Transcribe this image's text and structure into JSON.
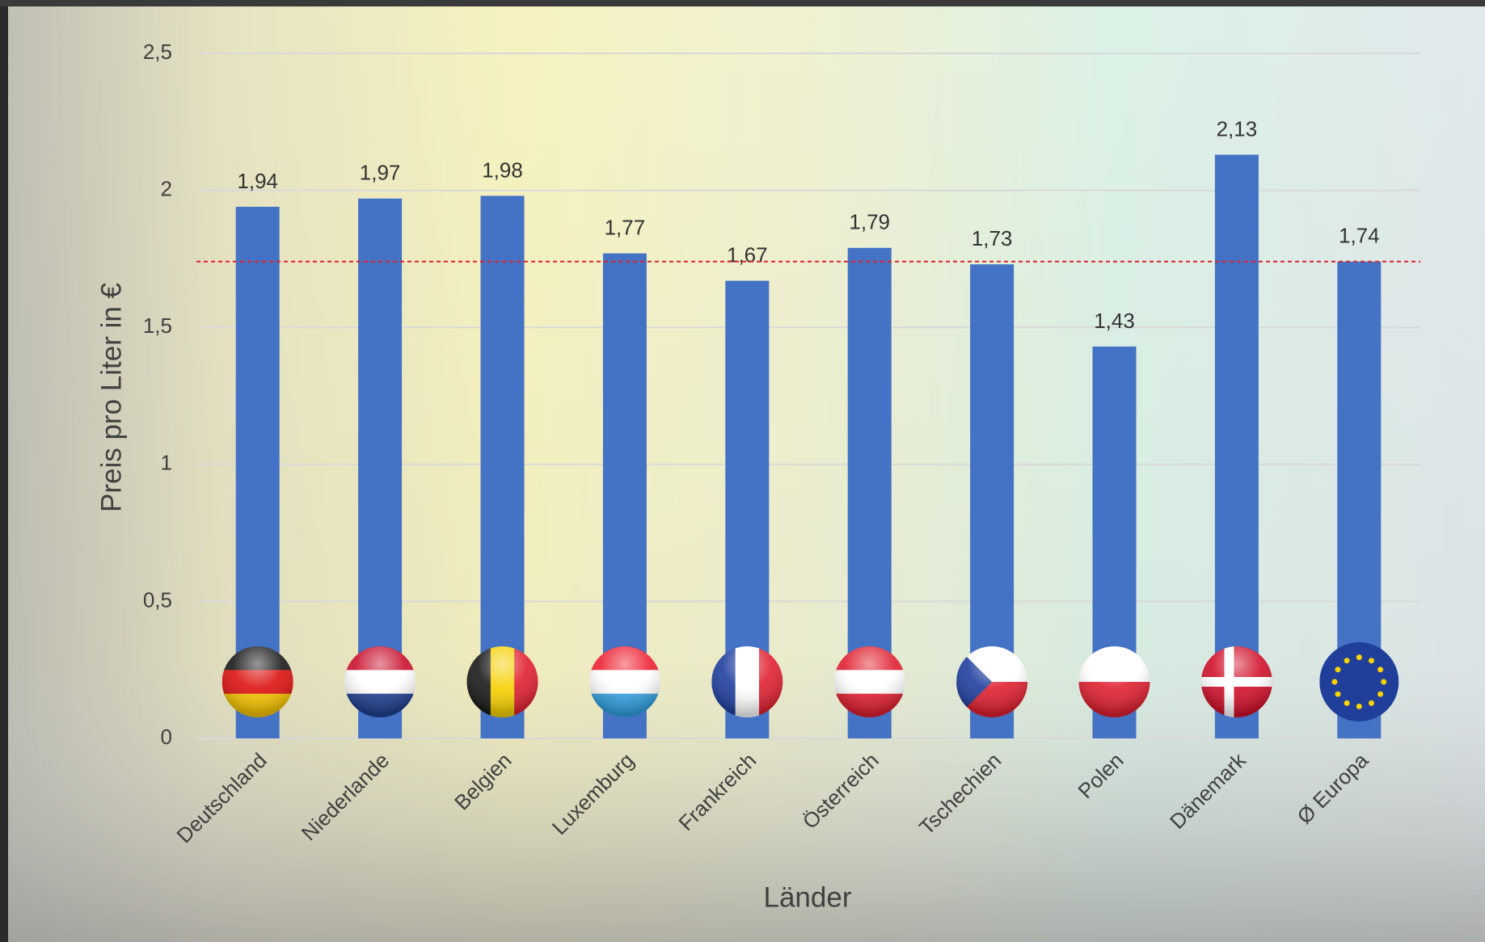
{
  "chart_data": {
    "type": "bar",
    "y_label": "Preis pro Liter in €",
    "x_label": "Länder",
    "categories": [
      "Deutschland",
      "Niederlande",
      "Belgien",
      "Luxemburg",
      "Frankreich",
      "Österreich",
      "Tschechien",
      "Polen",
      "Dänemark",
      "Ø Europa"
    ],
    "values": [
      1.94,
      1.97,
      1.98,
      1.77,
      1.67,
      1.79,
      1.73,
      1.43,
      2.13,
      1.74
    ],
    "value_labels": [
      "1,94",
      "1,97",
      "1,98",
      "1,77",
      "1,67",
      "1,79",
      "1,73",
      "1,43",
      "2,13",
      "1,74"
    ],
    "color": "#4472c4",
    "ylim": [
      0,
      2.5
    ],
    "yticks": [
      0,
      {
        "value": 0.5,
        "label": "0,5"
      },
      1,
      {
        "value": 1.5,
        "label": "1,5"
      },
      2,
      {
        "value": 2.5,
        "label": "2,5"
      }
    ],
    "grid": true,
    "reference_line": {
      "value": 1.74,
      "color": "#e0202a"
    }
  }
}
